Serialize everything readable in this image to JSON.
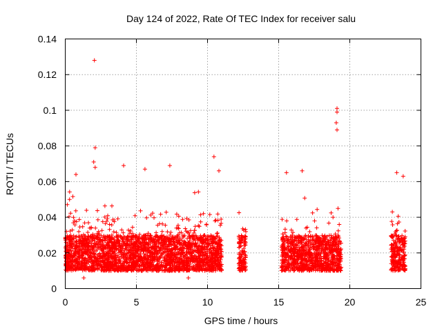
{
  "chart_data": {
    "type": "scatter",
    "title": "Day 124 of 2022, Rate Of TEC Index for receiver salu",
    "xlabel": "GPS time / hours",
    "ylabel": "ROTI / TECUs",
    "xlim": [
      0,
      25
    ],
    "ylim": [
      0,
      0.14
    ],
    "x_ticks": [
      0,
      5,
      10,
      15,
      20,
      25
    ],
    "x_tick_labels": [
      "0",
      "5",
      "10",
      "15",
      "20",
      "25"
    ],
    "y_ticks": [
      0,
      0.02,
      0.04,
      0.06,
      0.08,
      0.1,
      0.12,
      0.14
    ],
    "y_tick_labels": [
      "0",
      "0.02",
      "0.04",
      "0.06",
      "0.08",
      "0.1",
      "0.12",
      "0.14"
    ],
    "grid": true,
    "marker": "plus",
    "marker_color": "#ff0000",
    "series": [
      {
        "name": "",
        "coverage_hours": [
          [
            0,
            11
          ],
          [
            12.2,
            12.7
          ],
          [
            15.2,
            19.4
          ],
          [
            22.9,
            23.9
          ]
        ],
        "typical_range": [
          0.01,
          0.03
        ],
        "notable_points": [
          {
            "x": 2.05,
            "y": 0.128
          },
          {
            "x": 2.1,
            "y": 0.079
          },
          {
            "x": 2.0,
            "y": 0.071
          },
          {
            "x": 2.1,
            "y": 0.068
          },
          {
            "x": 10.45,
            "y": 0.074
          },
          {
            "x": 19.1,
            "y": 0.101
          },
          {
            "x": 19.1,
            "y": 0.099
          },
          {
            "x": 19.05,
            "y": 0.093
          },
          {
            "x": 19.1,
            "y": 0.089
          },
          {
            "x": 4.1,
            "y": 0.069
          },
          {
            "x": 7.35,
            "y": 0.069
          },
          {
            "x": 5.6,
            "y": 0.067
          },
          {
            "x": 16.65,
            "y": 0.066
          },
          {
            "x": 23.3,
            "y": 0.065
          },
          {
            "x": 23.75,
            "y": 0.063
          },
          {
            "x": 0.75,
            "y": 0.064
          },
          {
            "x": 10.8,
            "y": 0.066
          },
          {
            "x": 15.55,
            "y": 0.065
          },
          {
            "x": 0.3,
            "y": 0.05
          },
          {
            "x": 1.3,
            "y": 0.006
          },
          {
            "x": 8.65,
            "y": 0.006
          }
        ]
      }
    ]
  }
}
